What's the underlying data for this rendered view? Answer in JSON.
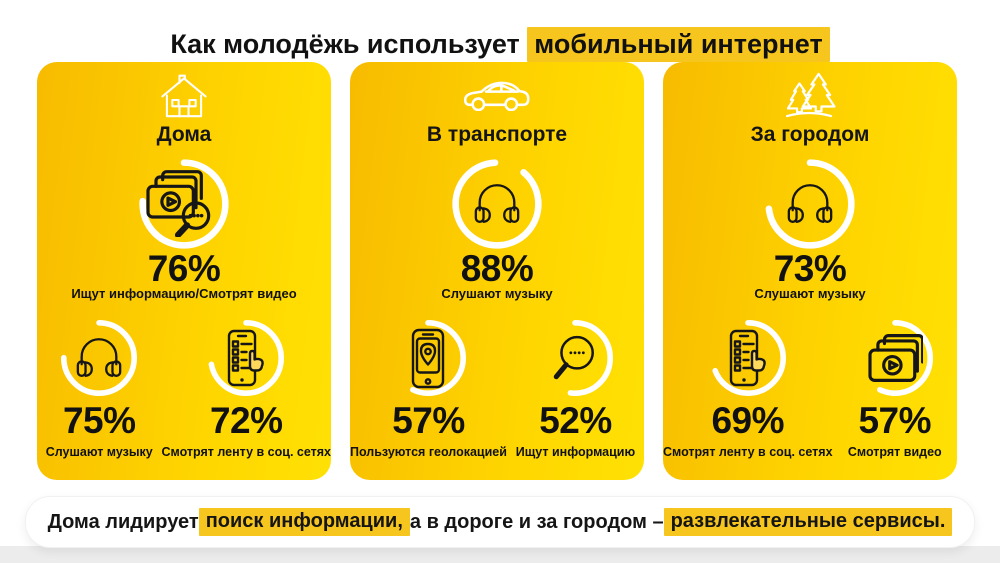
{
  "header": {
    "title_prefix": "Как молодёжь использует ",
    "title_highlight": "мобильный интернет"
  },
  "cards": [
    {
      "title": "Дома",
      "header_icon": "house-icon",
      "main_stat": {
        "pct": 76,
        "value": "76%",
        "label": "Ищут информацию/Смотрят видео",
        "icon": "search-video-icon"
      },
      "stats": [
        {
          "pct": 75,
          "value": "75%",
          "label": "Слушают музыку",
          "icon": "headphones-icon"
        },
        {
          "pct": 72,
          "value": "72%",
          "label": "Смотрят ленту в соц. сетях",
          "icon": "social-feed-phone-icon"
        }
      ]
    },
    {
      "title": "В транспорте",
      "header_icon": "car-icon",
      "main_stat": {
        "pct": 88,
        "value": "88%",
        "label": "Слушают музыку",
        "icon": "headphones-icon"
      },
      "stats": [
        {
          "pct": 57,
          "value": "57%",
          "label": "Пользуются геолокацией",
          "icon": "geolocation-phone-icon"
        },
        {
          "pct": 52,
          "value": "52%",
          "label": "Ищут информацию",
          "icon": "search-icon"
        }
      ]
    },
    {
      "title": "За городом",
      "header_icon": "trees-icon",
      "main_stat": {
        "pct": 73,
        "value": "73%",
        "label": "Слушают музыку",
        "icon": "headphones-icon"
      },
      "stats": [
        {
          "pct": 69,
          "value": "69%",
          "label": "Смотрят ленту в соц. сетях",
          "icon": "social-feed-phone-icon"
        },
        {
          "pct": 57,
          "value": "57%",
          "label": "Смотрят видео",
          "icon": "video-icon"
        }
      ]
    }
  ],
  "footer": {
    "parts": [
      {
        "text": "Дома лидирует ",
        "highlight": false
      },
      {
        "text": "поиск информации,",
        "highlight": true
      },
      {
        "text": " а в дороге и за городом – ",
        "highlight": false
      },
      {
        "text": "развлекательные сервисы.",
        "highlight": true
      }
    ]
  },
  "colors": {
    "card_gradient": [
      "#F7BB00",
      "#FFD600",
      "#FFE104"
    ],
    "highlight": "#F6C61E",
    "ring": "#FFFFFF",
    "text": "#111111",
    "bottom_strip": "#ECECEC"
  },
  "chart_data": {
    "type": "pie",
    "subtype": "percentage-ring-gauges",
    "title": "Как молодёжь использует мобильный интернет",
    "unit": "%",
    "legend_position": "none",
    "groups": [
      {
        "name": "Дома",
        "items": [
          {
            "label": "Ищут информацию/Смотрят видео",
            "value": 76
          },
          {
            "label": "Слушают музыку",
            "value": 75
          },
          {
            "label": "Смотрят ленту в соц. сетях",
            "value": 72
          }
        ]
      },
      {
        "name": "В транспорте",
        "items": [
          {
            "label": "Слушают музыку",
            "value": 88
          },
          {
            "label": "Пользуются геолокацией",
            "value": 57
          },
          {
            "label": "Ищут информацию",
            "value": 52
          }
        ]
      },
      {
        "name": "За городом",
        "items": [
          {
            "label": "Слушают музыку",
            "value": 73
          },
          {
            "label": "Смотрят ленту в соц. сетях",
            "value": 69
          },
          {
            "label": "Смотрят видео",
            "value": 57
          }
        ]
      }
    ],
    "annotation": "Дома лидирует поиск информации, а в дороге и за городом – развлекательные сервисы."
  }
}
